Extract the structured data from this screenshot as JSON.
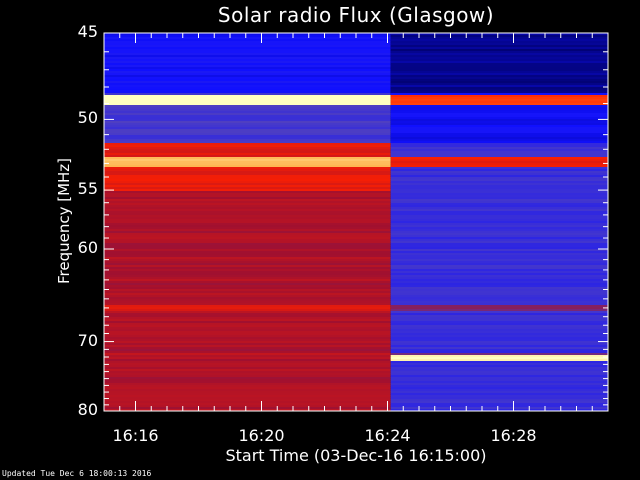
{
  "chart_data": {
    "type": "heatmap",
    "title": "Solar radio Flux (Glasgow)",
    "xlabel": "Start Time (03-Dec-16 16:15:00)",
    "ylabel": "Frequency [MHz]",
    "x_axis": {
      "unit": "time",
      "start": "16:15:00",
      "range_minutes_after_start": [
        0,
        16.0
      ],
      "ticks": [
        "16:16",
        "16:20",
        "16:24",
        "16:28"
      ],
      "tick_minutes_after_start": [
        1,
        5,
        9,
        13
      ]
    },
    "y_axis": {
      "unit": "MHz",
      "range": [
        45,
        80
      ],
      "ticks": [
        45,
        50,
        55,
        60,
        70,
        80
      ],
      "scale": "reciprocal"
    },
    "colormap": [
      "#000060",
      "#1010ff",
      "#5040c0",
      "#a01030",
      "#ff2000",
      "#ffa030",
      "#ffffc0"
    ],
    "transition_time": "16:24:06",
    "features": [
      {
        "label": "bright band",
        "freq": 48.8,
        "level": 1.0
      },
      {
        "label": "bright band",
        "freq": 52.9,
        "level": 0.9
      },
      {
        "label": "bright band",
        "freq": 72.2,
        "level": 1.0,
        "after_transition": true
      },
      {
        "label": "red band",
        "freq": 66.0,
        "level": 0.6
      },
      {
        "label": "red band",
        "freq": 71.8,
        "level": 0.55
      }
    ]
  },
  "footer": "Updated Tue Dec  6 18:00:13 2016"
}
